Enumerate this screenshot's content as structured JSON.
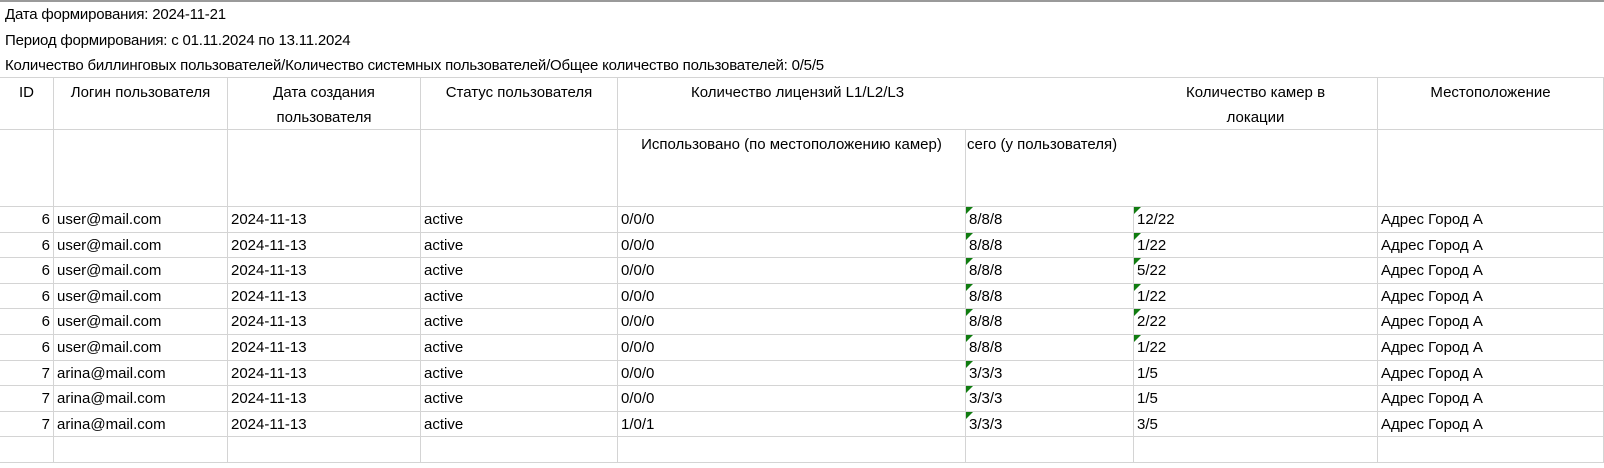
{
  "info": {
    "report_date": "Дата формирования: 2024-11-21",
    "period": "Период формирования:  с 01.11.2024  по 13.11.2024",
    "user_counts": "Количество биллинговых пользователей/Количество системных пользователей/Общее количество пользователей: 0/5/5"
  },
  "headers": {
    "id": "ID",
    "login": "Логин пользователя",
    "created": "Дата создания пользователя",
    "status": "Статус пользователя",
    "licenses": "Количество лицензий L1/L2/L3",
    "cameras": "Количество камер в локации",
    "location": "Местоположение",
    "used": "Использовано (по местоположению камер)",
    "total": "сего (у пользователя)"
  },
  "indicator_color": "#107c10",
  "rows": [
    {
      "id": "6",
      "login": "user@mail.com",
      "created": "2024-11-13",
      "status": "active",
      "used": "0/0/0",
      "total": "8/8/8",
      "cameras": "12/22",
      "location": "Адрес Город А",
      "flag_total": true,
      "flag_cameras": true
    },
    {
      "id": "6",
      "login": "user@mail.com",
      "created": "2024-11-13",
      "status": "active",
      "used": "0/0/0",
      "total": "8/8/8",
      "cameras": "1/22",
      "location": "Адрес Город А",
      "flag_total": true,
      "flag_cameras": true
    },
    {
      "id": "6",
      "login": "user@mail.com",
      "created": "2024-11-13",
      "status": "active",
      "used": "0/0/0",
      "total": "8/8/8",
      "cameras": "5/22",
      "location": "Адрес Город А",
      "flag_total": true,
      "flag_cameras": true
    },
    {
      "id": "6",
      "login": "user@mail.com",
      "created": "2024-11-13",
      "status": "active",
      "used": "0/0/0",
      "total": "8/8/8",
      "cameras": "1/22",
      "location": "Адрес Город А",
      "flag_total": true,
      "flag_cameras": true
    },
    {
      "id": "6",
      "login": "user@mail.com",
      "created": "2024-11-13",
      "status": "active",
      "used": "0/0/0",
      "total": "8/8/8",
      "cameras": "2/22",
      "location": "Адрес Город А",
      "flag_total": true,
      "flag_cameras": true
    },
    {
      "id": "6",
      "login": "user@mail.com",
      "created": "2024-11-13",
      "status": "active",
      "used": "0/0/0",
      "total": "8/8/8",
      "cameras": "1/22",
      "location": "Адрес Город А",
      "flag_total": true,
      "flag_cameras": true
    },
    {
      "id": "7",
      "login": "arina@mail.com",
      "created": "2024-11-13",
      "status": "active",
      "used": "0/0/0",
      "total": "3/3/3",
      "cameras": "1/5",
      "location": "Адрес Город А",
      "flag_total": true,
      "flag_cameras": false
    },
    {
      "id": "7",
      "login": "arina@mail.com",
      "created": "2024-11-13",
      "status": "active",
      "used": "0/0/0",
      "total": "3/3/3",
      "cameras": "1/5",
      "location": "Адрес Город А",
      "flag_total": true,
      "flag_cameras": false
    },
    {
      "id": "7",
      "login": "arina@mail.com",
      "created": "2024-11-13",
      "status": "active",
      "used": "1/0/1",
      "total": "3/3/3",
      "cameras": "3/5",
      "location": "Адрес Город А",
      "flag_total": true,
      "flag_cameras": false
    }
  ]
}
